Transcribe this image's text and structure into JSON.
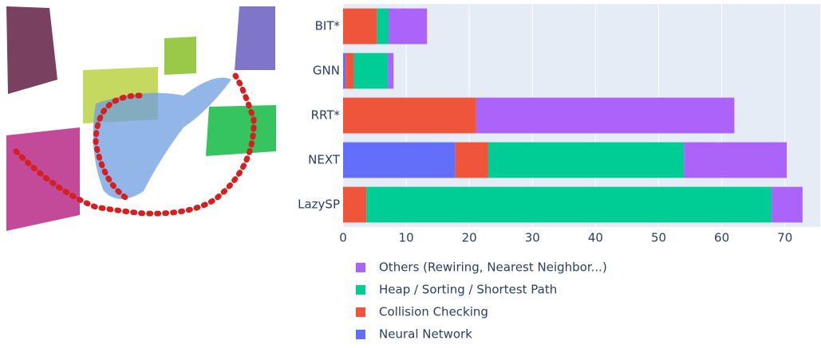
{
  "chart_data": {
    "type": "stacked-bar-horizontal",
    "categories": [
      "BIT*",
      "GNN",
      "RRT*",
      "NEXT",
      "LazySP"
    ],
    "series": [
      {
        "name": "Neural Network",
        "color": "#636efa",
        "values": [
          0,
          0.4,
          0,
          17.8,
          0
        ]
      },
      {
        "name": "Collision Checking",
        "color": "#ef553b",
        "values": [
          5.4,
          1.3,
          21.1,
          5.2,
          3.7
        ]
      },
      {
        "name": "Heap / Sorting / Shortest Path",
        "color": "#00cc96",
        "values": [
          1.8,
          5.4,
          0,
          31.0,
          64.2
        ]
      },
      {
        "name": "Others (Rewiring, Nearest Neighbor...)",
        "color": "#ab63fa",
        "values": [
          6.1,
          0.9,
          40.9,
          16.3,
          4.9
        ]
      }
    ],
    "xlim": [
      0,
      75.6
    ],
    "xticks": [
      0,
      10,
      20,
      30,
      40,
      50,
      60,
      70
    ],
    "grid": true
  }
}
